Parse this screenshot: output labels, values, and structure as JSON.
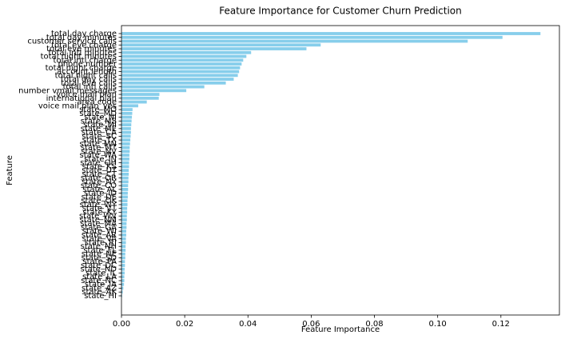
{
  "chart_data": {
    "type": "barh",
    "title": "Feature Importance for Customer Churn Prediction",
    "xlabel": "Feature Importance",
    "ylabel": "Feature",
    "color": "#87ceeb",
    "categories": [
      "total day charge",
      "total day minutes",
      "customer service calls",
      "total eve charge",
      "total eve minutes",
      "total intl minutes",
      "total night minutes",
      "total intl charge",
      "phone number",
      "total night charge",
      "account length",
      "total night calls",
      "total day calls",
      "total eve calls",
      "total intl calls",
      "number vmail messages",
      "voice mail plan",
      "international plan",
      "area code",
      "voice mail plan_yes",
      "state_MO",
      "state_MD",
      "state_NJ",
      "state_MS",
      "state_MI",
      "state_ME",
      "state_CA",
      "state_SC",
      "state_TX",
      "state_MN",
      "state_MT",
      "state_NV",
      "state_WA",
      "state_IN",
      "state_OH",
      "state_KS",
      "state_UT",
      "state_CT",
      "state_OR",
      "state_NY",
      "state_CO",
      "state_AL",
      "state_ID",
      "state_DE",
      "state_OK",
      "state_WY",
      "state_VT",
      "state_KY",
      "state_WV",
      "state_NM",
      "state_MA",
      "state_GA",
      "state_WI",
      "state_AR",
      "state_VA",
      "state_RI",
      "state_NH",
      "state_FL",
      "state_NE",
      "state_SD",
      "state_PA",
      "state_DC",
      "state_ND",
      "state_IL",
      "state_LA",
      "state_NC",
      "state_IA",
      "state_AZ",
      "state_AK",
      "state_HI"
    ],
    "values": [
      0.1325,
      0.1205,
      0.1095,
      0.063,
      0.0585,
      0.041,
      0.0395,
      0.0385,
      0.038,
      0.0375,
      0.0372,
      0.0368,
      0.0355,
      0.033,
      0.0262,
      0.0205,
      0.012,
      0.0118,
      0.008,
      0.0053,
      0.0035,
      0.0034,
      0.0033,
      0.0032,
      0.0031,
      0.003,
      0.003,
      0.0029,
      0.0028,
      0.0027,
      0.0026,
      0.0026,
      0.0025,
      0.0025,
      0.0024,
      0.0024,
      0.0023,
      0.0023,
      0.0022,
      0.0022,
      0.0021,
      0.0021,
      0.002,
      0.002,
      0.0019,
      0.0019,
      0.0018,
      0.0018,
      0.0017,
      0.0017,
      0.0016,
      0.0016,
      0.0015,
      0.0015,
      0.0014,
      0.0014,
      0.0013,
      0.0013,
      0.0012,
      0.0012,
      0.0011,
      0.0011,
      0.001,
      0.001,
      0.0009,
      0.0009,
      0.0008,
      0.0006,
      0.0004,
      0.0002
    ],
    "xlim": [
      0,
      0.1385
    ],
    "xticks": [
      {
        "value": 0,
        "label": "0.00"
      },
      0.02,
      0.04,
      0.06,
      0.08,
      {
        "value": 0.1,
        "label": "0.10"
      },
      0.12
    ]
  }
}
